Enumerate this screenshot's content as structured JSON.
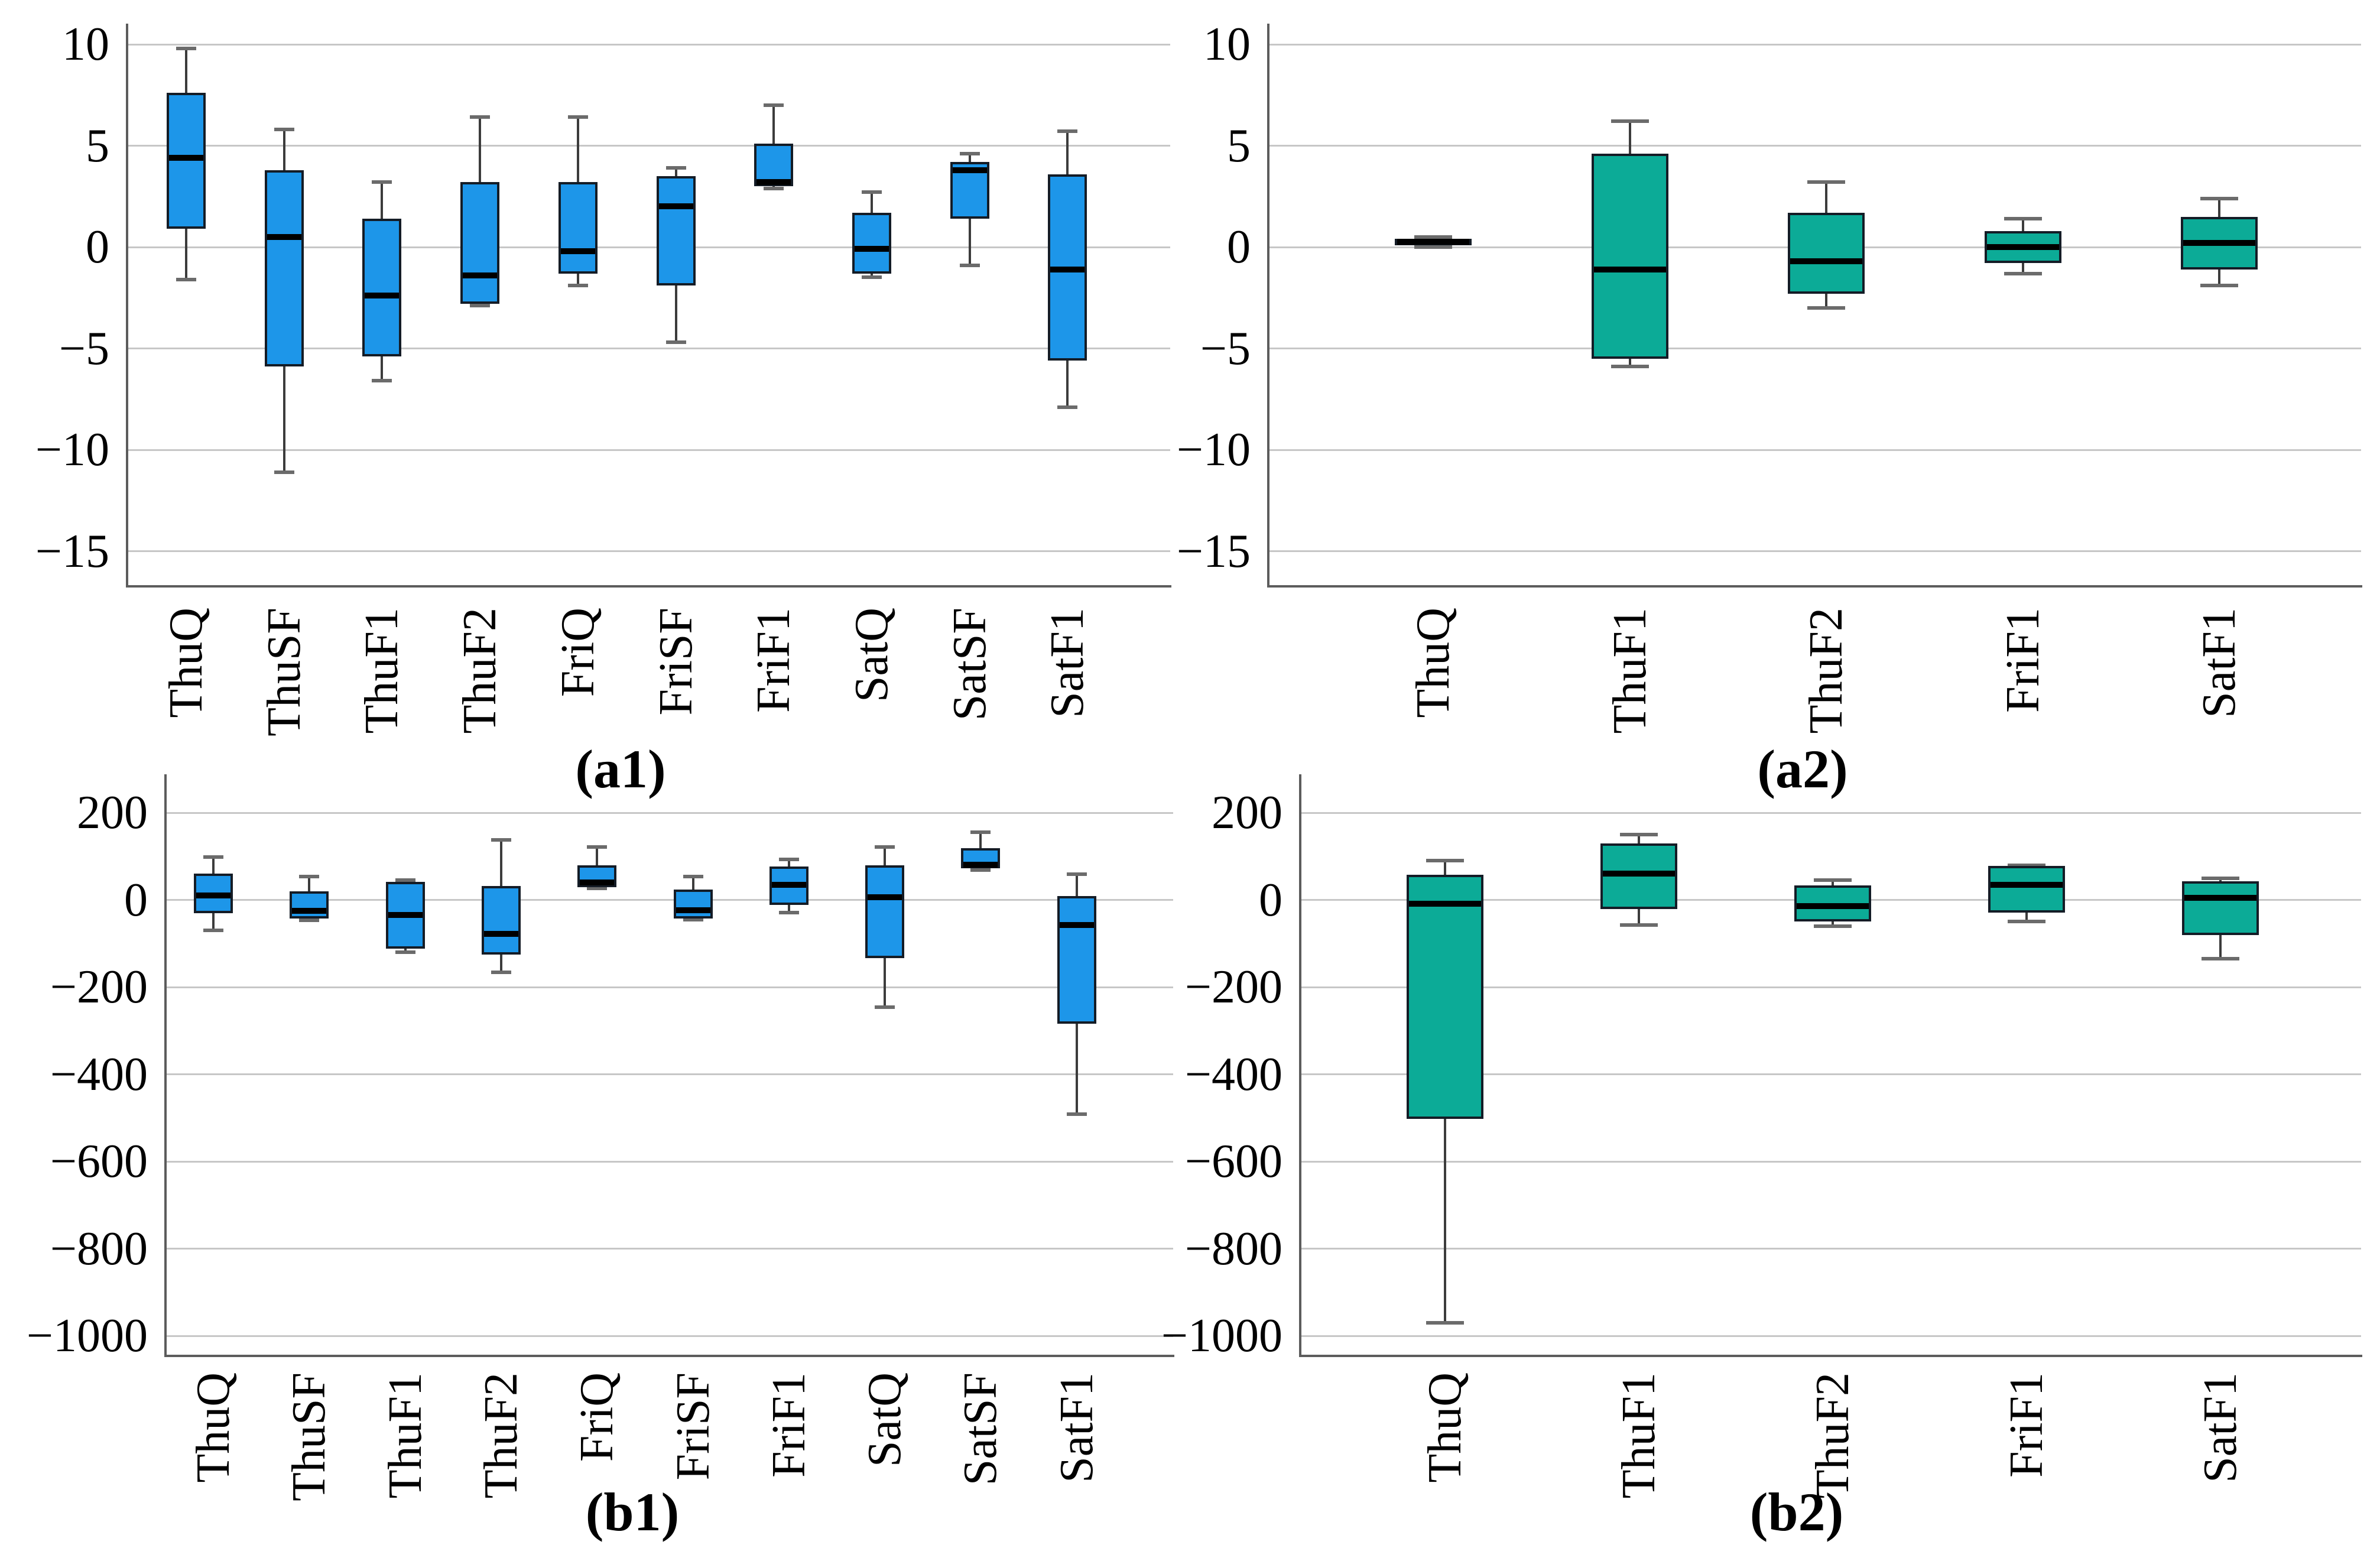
{
  "figure": {
    "background": "#ffffff",
    "style": {
      "blue_fill": "#1d96e9",
      "teal_fill": "#0cab97",
      "box_border": "#141c26",
      "median_color": "#000000",
      "whisker_color": "#3c3c3c",
      "cap_color": "#6b6b6b",
      "gridline_color": "#c7c7c7",
      "spine_color": "#5c5c5c",
      "text_color": "#000000"
    }
  },
  "chart_data": [
    {
      "type": "boxplot",
      "panel": "a1",
      "caption": "(a1)",
      "color": "#1d96e9",
      "grid": true,
      "legend": "none",
      "x_tick_rotation": 90,
      "ylim": [
        -17,
        11.5
      ],
      "y_ticks": [
        10,
        5,
        0,
        -5,
        -10,
        -15
      ],
      "y_tick_labels": [
        "10",
        "5",
        "0",
        "−5",
        "−10",
        "−15"
      ],
      "categories": [
        "ThuQ",
        "ThuSF",
        "ThuF1",
        "ThuF2",
        "FriQ",
        "FriSF",
        "FriF1",
        "SatQ",
        "SatSF",
        "SatF1"
      ],
      "stats": [
        {
          "whislo": -1.6,
          "q1": 0.9,
          "med": 4.4,
          "q3": 7.6,
          "whishi": 9.8
        },
        {
          "whislo": -11.1,
          "q1": -5.9,
          "med": 0.5,
          "q3": 3.8,
          "whishi": 5.8
        },
        {
          "whislo": -6.6,
          "q1": -5.4,
          "med": -2.4,
          "q3": 1.4,
          "whishi": 3.2
        },
        {
          "whislo": -2.9,
          "q1": -2.8,
          "med": -1.4,
          "q3": 3.2,
          "whishi": 6.4
        },
        {
          "whislo": -1.9,
          "q1": -1.3,
          "med": -0.2,
          "q3": 3.2,
          "whishi": 6.4
        },
        {
          "whislo": -4.7,
          "q1": -1.9,
          "med": 2.0,
          "q3": 3.5,
          "whishi": 3.9
        },
        {
          "whislo": 2.9,
          "q1": 3.0,
          "med": 3.2,
          "q3": 5.1,
          "whishi": 7.0
        },
        {
          "whislo": -1.5,
          "q1": -1.3,
          "med": -0.1,
          "q3": 1.7,
          "whishi": 2.7
        },
        {
          "whislo": -0.9,
          "q1": 1.4,
          "med": 3.8,
          "q3": 4.2,
          "whishi": 4.6
        },
        {
          "whislo": -7.9,
          "q1": -5.6,
          "med": -1.1,
          "q3": 3.6,
          "whishi": 5.7
        }
      ]
    },
    {
      "type": "boxplot",
      "panel": "a2",
      "caption": "(a2)",
      "color": "#0cab97",
      "grid": true,
      "legend": "none",
      "x_tick_rotation": 90,
      "ylim": [
        -17,
        11.5
      ],
      "y_ticks": [
        10,
        5,
        0,
        -5,
        -10,
        -15
      ],
      "y_tick_labels": [
        "10",
        "5",
        "0",
        "−5",
        "−10",
        "−15"
      ],
      "categories": [
        "ThuQ",
        "ThuF1",
        "ThuF2",
        "FriF1",
        "SatF1"
      ],
      "stats": [
        {
          "whislo": 0.0,
          "q1": 0.1,
          "med": 0.25,
          "q3": 0.4,
          "whishi": 0.5
        },
        {
          "whislo": -5.9,
          "q1": -5.5,
          "med": -1.1,
          "q3": 4.6,
          "whishi": 6.2
        },
        {
          "whislo": -3.0,
          "q1": -2.3,
          "med": -0.7,
          "q3": 1.7,
          "whishi": 3.2
        },
        {
          "whislo": -1.3,
          "q1": -0.8,
          "med": 0.0,
          "q3": 0.8,
          "whishi": 1.4
        },
        {
          "whislo": -1.9,
          "q1": -1.1,
          "med": 0.2,
          "q3": 1.5,
          "whishi": 2.4
        }
      ]
    },
    {
      "type": "boxplot",
      "panel": "b1",
      "caption": "(b1)",
      "color": "#1d96e9",
      "grid": true,
      "legend": "none",
      "x_tick_rotation": 90,
      "ylim": [
        -1080,
        240
      ],
      "y_ticks": [
        200,
        0,
        -200,
        -400,
        -600,
        -800,
        -1000
      ],
      "y_tick_labels": [
        "200",
        "0",
        "−200",
        "−400",
        "−600",
        "−800",
        "−1000"
      ],
      "categories": [
        "ThuQ",
        "ThuSF",
        "ThuF1",
        "ThuF2",
        "FriQ",
        "FriSF",
        "FriF1",
        "SatQ",
        "SatSF",
        "SatF1"
      ],
      "stats": [
        {
          "whislo": -70,
          "q1": -30,
          "med": 10,
          "q3": 60,
          "whishi": 98
        },
        {
          "whislo": -47,
          "q1": -43,
          "med": -25,
          "q3": 20,
          "whishi": 53
        },
        {
          "whislo": -120,
          "q1": -112,
          "med": -34,
          "q3": 41,
          "whishi": 45
        },
        {
          "whislo": -166,
          "q1": -126,
          "med": -78,
          "q3": 32,
          "whishi": 137
        },
        {
          "whislo": 26,
          "q1": 29,
          "med": 40,
          "q3": 79,
          "whishi": 121
        },
        {
          "whislo": -46,
          "q1": -43,
          "med": -24,
          "q3": 24,
          "whishi": 54
        },
        {
          "whislo": -29,
          "q1": -11,
          "med": 35,
          "q3": 77,
          "whishi": 93
        },
        {
          "whislo": -246,
          "q1": -134,
          "med": 6,
          "q3": 79,
          "whishi": 121
        },
        {
          "whislo": 68,
          "q1": 72,
          "med": 81,
          "q3": 119,
          "whishi": 155
        },
        {
          "whislo": -492,
          "q1": -284,
          "med": -57,
          "q3": 9,
          "whishi": 59
        }
      ]
    },
    {
      "type": "boxplot",
      "panel": "b2",
      "caption": "(b2)",
      "color": "#0cab97",
      "grid": true,
      "legend": "none",
      "x_tick_rotation": 90,
      "ylim": [
        -1080,
        240
      ],
      "y_ticks": [
        200,
        0,
        -200,
        -400,
        -600,
        -800,
        -1000
      ],
      "y_tick_labels": [
        "200",
        "0",
        "−200",
        "−400",
        "−600",
        "−800",
        "−1000"
      ],
      "categories": [
        "ThuQ",
        "ThuF1",
        "ThuF2",
        "FriF1",
        "SatF1"
      ],
      "stats": [
        {
          "whislo": -970,
          "q1": -503,
          "med": -9,
          "q3": 57,
          "whishi": 90
        },
        {
          "whislo": -57,
          "q1": -21,
          "med": 61,
          "q3": 129,
          "whishi": 150
        },
        {
          "whislo": -60,
          "q1": -49,
          "med": -14,
          "q3": 33,
          "whishi": 46
        },
        {
          "whislo": -49,
          "q1": -29,
          "med": 34,
          "q3": 78,
          "whishi": 80
        },
        {
          "whislo": -135,
          "q1": -81,
          "med": 5,
          "q3": 43,
          "whishi": 49
        }
      ]
    }
  ]
}
